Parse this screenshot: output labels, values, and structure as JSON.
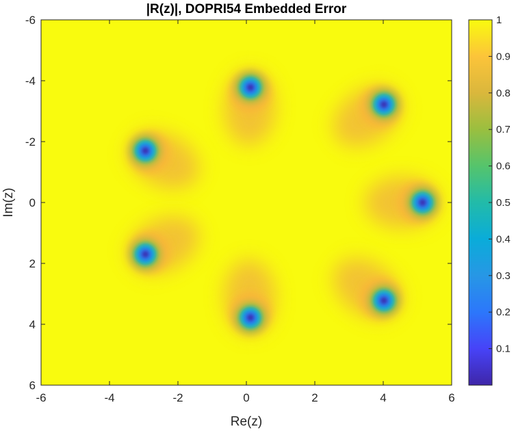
{
  "chart_data": {
    "type": "heatmap",
    "title": "|R(z)|, DOPRI54 Embedded Error",
    "xlabel": "Re(z)",
    "ylabel": "Im(z)",
    "xlim": [
      -6,
      6
    ],
    "ylim": [
      -6,
      6
    ],
    "y_direction": "reversed",
    "x_ticks": [
      -6,
      -4,
      -2,
      0,
      2,
      4,
      6
    ],
    "y_ticks": [
      -6,
      -4,
      -2,
      0,
      2,
      4,
      6
    ],
    "colormap": "parula",
    "color_limits": [
      0,
      1
    ],
    "colorbar_ticks": [
      0.1,
      0.2,
      0.3,
      0.4,
      0.5,
      0.6,
      0.7,
      0.8,
      0.9,
      1
    ],
    "grid": false,
    "zeros": [
      {
        "re": 0.12,
        "im": -3.78
      },
      {
        "re": 0.12,
        "im": 3.78
      },
      {
        "re": -2.95,
        "im": -1.7
      },
      {
        "re": -2.95,
        "im": 1.7
      },
      {
        "re": 4.02,
        "im": -3.22
      },
      {
        "re": 4.02,
        "im": 3.22
      },
      {
        "re": 5.15,
        "im": 0
      }
    ],
    "colors": {
      "background": "#f9fb0e",
      "frame": "#262626"
    }
  }
}
